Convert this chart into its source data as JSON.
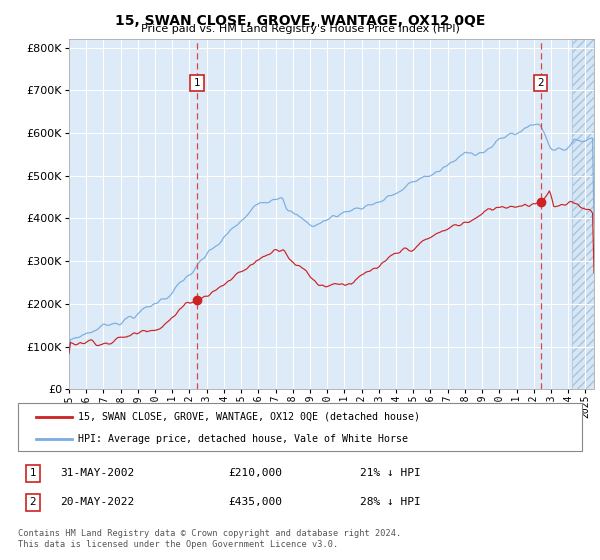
{
  "title": "15, SWAN CLOSE, GROVE, WANTAGE, OX12 0QE",
  "subtitle": "Price paid vs. HM Land Registry's House Price Index (HPI)",
  "hpi_color": "#7aade0",
  "price_color": "#cc2222",
  "background_color": "#ddeaf7",
  "grid_color": "#ffffff",
  "ylim": [
    0,
    820000
  ],
  "yticks": [
    0,
    100000,
    200000,
    300000,
    400000,
    500000,
    600000,
    700000,
    800000
  ],
  "ytick_labels": [
    "£0",
    "£100K",
    "£200K",
    "£300K",
    "£400K",
    "£500K",
    "£600K",
    "£700K",
    "£800K"
  ],
  "transaction1_price": 210000,
  "transaction1_label": "31-MAY-2002",
  "transaction1_year": 2002.42,
  "transaction1_pct": "21% ↓ HPI",
  "transaction2_price": 435000,
  "transaction2_label": "20-MAY-2022",
  "transaction2_year": 2022.38,
  "transaction2_pct": "28% ↓ HPI",
  "legend_house_label": "15, SWAN CLOSE, GROVE, WANTAGE, OX12 0QE (detached house)",
  "legend_hpi_label": "HPI: Average price, detached house, Vale of White Horse",
  "footer": "Contains HM Land Registry data © Crown copyright and database right 2024.\nThis data is licensed under the Open Government Licence v3.0.",
  "xstart": 1995.0,
  "xend": 2025.5,
  "hatch_start": 2024.25,
  "xtick_years": [
    1995,
    1996,
    1997,
    1998,
    1999,
    2000,
    2001,
    2002,
    2003,
    2004,
    2005,
    2006,
    2007,
    2008,
    2009,
    2010,
    2011,
    2012,
    2013,
    2014,
    2015,
    2016,
    2017,
    2018,
    2019,
    2020,
    2021,
    2022,
    2023,
    2024,
    2025
  ]
}
